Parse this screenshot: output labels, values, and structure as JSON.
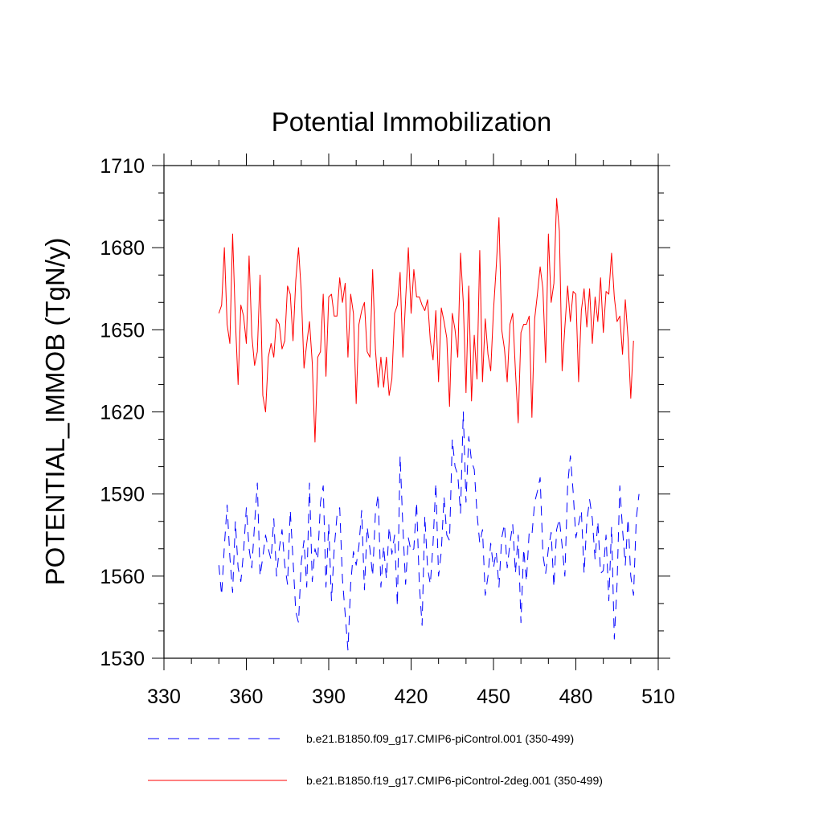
{
  "chart_data": {
    "type": "line",
    "title": "Potential Immobilization",
    "xlabel": "",
    "ylabel": "POTENTIAL_IMMOB  (TgN/y)",
    "xlim": [
      330,
      510
    ],
    "ylim": [
      1530,
      1710
    ],
    "xticks": [
      "330",
      "360",
      "390",
      "420",
      "450",
      "480",
      "510"
    ],
    "yticks": [
      "1530",
      "1560",
      "1590",
      "1620",
      "1650",
      "1680",
      "1710"
    ],
    "grid": false,
    "legend_position": "bottom",
    "series": [
      {
        "name": "b.e21.B1850.f09_g17.CMIP6-piControl.001 (350-499)",
        "color": "#0000ff",
        "style": "dashed",
        "x_start": 350,
        "values": [
          1564,
          1553,
          1571,
          1586,
          1567,
          1554,
          1580,
          1563,
          1558,
          1569,
          1585,
          1570,
          1563,
          1579,
          1594,
          1560,
          1567,
          1575,
          1570,
          1566,
          1581,
          1560,
          1570,
          1577,
          1564,
          1557,
          1584,
          1566,
          1547,
          1543,
          1565,
          1573,
          1556,
          1594,
          1558,
          1570,
          1566,
          1587,
          1593,
          1556,
          1579,
          1551,
          1570,
          1582,
          1585,
          1559,
          1546,
          1533,
          1557,
          1569,
          1564,
          1571,
          1584,
          1555,
          1578,
          1570,
          1560,
          1583,
          1590,
          1556,
          1571,
          1559,
          1578,
          1568,
          1575,
          1549,
          1604,
          1578,
          1557,
          1574,
          1569,
          1570,
          1587,
          1557,
          1542,
          1582,
          1563,
          1557,
          1572,
          1594,
          1560,
          1569,
          1589,
          1575,
          1573,
          1610,
          1600,
          1597,
          1583,
          1620,
          1587,
          1611,
          1602,
          1599,
          1583,
          1572,
          1577,
          1553,
          1560,
          1572,
          1563,
          1569,
          1556,
          1574,
          1579,
          1563,
          1572,
          1579,
          1561,
          1575,
          1543,
          1570,
          1558,
          1576,
          1575,
          1587,
          1591,
          1596,
          1568,
          1561,
          1570,
          1576,
          1556,
          1577,
          1581,
          1571,
          1560,
          1593,
          1604,
          1591,
          1574,
          1579,
          1584,
          1561,
          1580,
          1588,
          1581,
          1566,
          1580,
          1561,
          1562,
          1575,
          1551,
          1578,
          1537,
          1557,
          1593,
          1577,
          1564,
          1581,
          1560,
          1553,
          1581,
          1590
        ]
      },
      {
        "name": "b.e21.B1850.f19_g17.CMIP6-piControl-2deg.001 (350-499)",
        "color": "#ff0000",
        "style": "solid",
        "x_start": 350,
        "values": [
          1656,
          1659,
          1680,
          1652,
          1645,
          1685,
          1654,
          1630,
          1659,
          1655,
          1645,
          1677,
          1648,
          1637,
          1642,
          1670,
          1626,
          1620,
          1640,
          1645,
          1640,
          1654,
          1652,
          1643,
          1646,
          1666,
          1663,
          1646,
          1668,
          1680,
          1664,
          1636,
          1645,
          1653,
          1638,
          1609,
          1640,
          1642,
          1663,
          1633,
          1662,
          1663,
          1655,
          1655,
          1669,
          1660,
          1667,
          1640,
          1663,
          1656,
          1623,
          1652,
          1657,
          1660,
          1642,
          1640,
          1672,
          1643,
          1629,
          1640,
          1629,
          1640,
          1626,
          1632,
          1656,
          1659,
          1671,
          1640,
          1661,
          1680,
          1656,
          1672,
          1662,
          1662,
          1659,
          1657,
          1661,
          1646,
          1639,
          1657,
          1631,
          1658,
          1653,
          1647,
          1622,
          1656,
          1650,
          1640,
          1678,
          1660,
          1627,
          1666,
          1624,
          1648,
          1632,
          1679,
          1631,
          1654,
          1641,
          1635,
          1657,
          1673,
          1691,
          1650,
          1643,
          1631,
          1652,
          1656,
          1635,
          1616,
          1649,
          1652,
          1652,
          1655,
          1618,
          1654,
          1663,
          1673,
          1665,
          1638,
          1685,
          1660,
          1667,
          1698,
          1686,
          1635,
          1651,
          1666,
          1653,
          1664,
          1663,
          1631,
          1657,
          1665,
          1651,
          1665,
          1645,
          1662,
          1653,
          1669,
          1649,
          1664,
          1663,
          1678,
          1662,
          1653,
          1655,
          1641,
          1661,
          1647,
          1625,
          1646
        ]
      }
    ]
  }
}
